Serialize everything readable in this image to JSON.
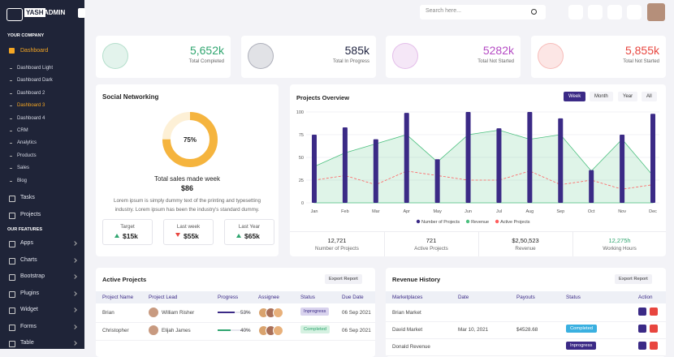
{
  "sidebar": {
    "brand_prefix": "YASH",
    "brand": "ADMIN",
    "section1": "YOUR COMPANY",
    "dashboard": "Dashboard",
    "sub": [
      "Dashboard Light",
      "Dashboard Dark",
      "Dashboard 2",
      "Dashboard 3",
      "Dashboard 4",
      "CRM",
      "Analytics",
      "Products",
      "Sales",
      "Blog"
    ],
    "items1": [
      "Tasks",
      "Projects"
    ],
    "section2": "OUR FEATURES",
    "items2": [
      "Apps",
      "Charts",
      "Bootstrap",
      "Plugins",
      "Widget",
      "Forms",
      "Table"
    ]
  },
  "header": {
    "search": "Search here..."
  },
  "stats": [
    {
      "value": "5,652k",
      "label": "Total Completed",
      "color": "#2fa56f"
    },
    {
      "value": "585k",
      "label": "Total In Progress",
      "color": "#1f2340"
    },
    {
      "value": "5282k",
      "label": "Total Not Started",
      "color": "#b54bc4"
    },
    {
      "value": "5,855k",
      "label": "Total Not Started",
      "color": "#e8463f"
    }
  ],
  "social": {
    "title": "Social Networking",
    "donut": 75,
    "donut_label": "75%",
    "caption": "Total sales made week",
    "amount": "$86",
    "text": "Lorem ipsum is simply dummy text of the printing and typesetting industry. Lorem ipsum has been the industry's standard dummy.",
    "boxes": [
      {
        "label": "Target",
        "value": "$15k",
        "trend": "up"
      },
      {
        "label": "Last week",
        "value": "$55k",
        "trend": "down"
      },
      {
        "label": "Last Year",
        "value": "$65k",
        "trend": "up"
      }
    ]
  },
  "chart_data": {
    "type": "bar",
    "title": "Projects Overview",
    "tabs": [
      "Week",
      "Month",
      "Year",
      "All"
    ],
    "categories": [
      "Jan",
      "Feb",
      "Mar",
      "Apr",
      "May",
      "Jun",
      "Jul",
      "Aug",
      "Sep",
      "Oct",
      "Nov",
      "Dec"
    ],
    "series": [
      {
        "name": "Number of Projects",
        "color": "#3b2a86",
        "kind": "bar",
        "values": [
          75,
          83,
          70,
          99,
          48,
          100,
          82,
          100,
          93,
          36,
          75,
          98
        ]
      },
      {
        "name": "Revenue",
        "color": "#4cc07f",
        "kind": "area",
        "values": [
          40,
          55,
          65,
          75,
          45,
          75,
          80,
          70,
          75,
          35,
          70,
          30
        ]
      },
      {
        "name": "Active Projects",
        "color": "#ff5e5e",
        "kind": "dashed",
        "values": [
          25,
          30,
          20,
          35,
          30,
          25,
          25,
          35,
          20,
          25,
          15,
          20
        ]
      }
    ],
    "ylim": [
      0,
      100
    ],
    "yticks": [
      0,
      25,
      50,
      75,
      100
    ],
    "grid": true,
    "summary": [
      {
        "value": "12,721",
        "label": "Number of Projects"
      },
      {
        "value": "721",
        "label": "Active Projects"
      },
      {
        "value": "$2,50,523",
        "label": "Revenue"
      },
      {
        "value": "12,275h",
        "label": "Working Hours"
      }
    ]
  },
  "active_projects": {
    "title": "Active Projects",
    "export": "Export Report",
    "columns": [
      "Project Name",
      "Project Lead",
      "Progress",
      "Assignee",
      "Status",
      "Due Date"
    ],
    "rows": [
      {
        "name": "Brian",
        "lead": "William Risher",
        "progress": 53,
        "progress_label": "53%",
        "status": "Inprogress",
        "due": "06 Sep 2021"
      },
      {
        "name": "Christopher",
        "lead": "Elijah James",
        "progress": 40,
        "progress_label": "40%",
        "status": "Completed",
        "due": "06 Sep 2021"
      }
    ]
  },
  "revenue_history": {
    "title": "Revenue History",
    "export": "Export Report",
    "columns": [
      "Marketplaces",
      "Date",
      "Payouts",
      "Status",
      "Action"
    ],
    "rows": [
      {
        "market": "Brian Market"
      },
      {
        "market": "David Market",
        "date": "Mar 10, 2021",
        "payout": "$4528.68",
        "status": "Completed"
      },
      {
        "market": "Donald Revenue",
        "status": "Inprogress"
      }
    ]
  }
}
